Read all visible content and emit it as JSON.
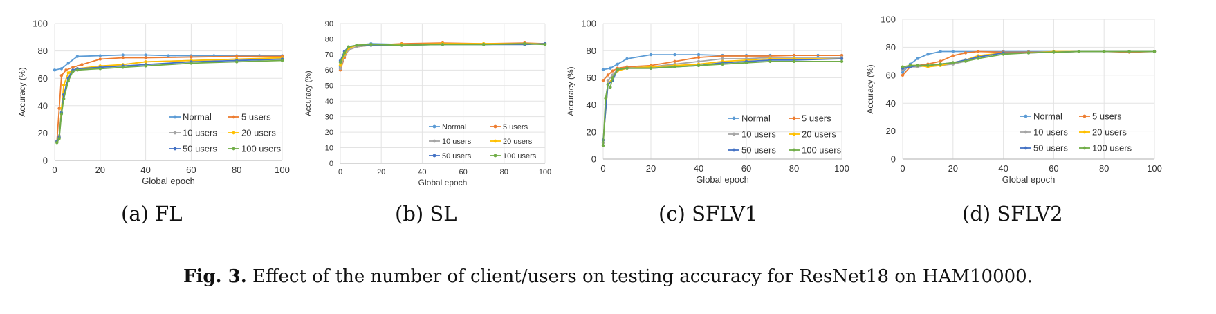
{
  "chart_data": [
    {
      "type": "line",
      "subcaption": "(a) FL",
      "xlabel": "Global epoch",
      "ylabel": "Accuracy (%)",
      "xlim": [
        0,
        100
      ],
      "ylim": [
        0,
        100
      ],
      "xticks": [
        "0",
        "20",
        "40",
        "60",
        "80",
        "100"
      ],
      "yticks": [
        "0",
        "20",
        "40",
        "60",
        "80",
        "100"
      ],
      "legend": [
        "Normal",
        "5 users",
        "10 users",
        "20 users",
        "50 users",
        "100 users"
      ],
      "series": [
        {
          "name": "Normal",
          "color": "#5b9bd5",
          "x": [
            0,
            3,
            6,
            10,
            20,
            30,
            40,
            50,
            60,
            70,
            80,
            90,
            100
          ],
          "values": [
            66,
            67,
            71,
            76,
            76.5,
            77,
            77,
            76.5,
            76.5,
            76.5,
            76.5,
            76.5,
            76.5
          ]
        },
        {
          "name": "5 users",
          "color": "#ed7d31",
          "x": [
            1,
            2,
            3,
            5,
            8,
            12,
            20,
            30,
            40,
            60,
            80,
            100
          ],
          "values": [
            14,
            38,
            62,
            66,
            68,
            70,
            74,
            75,
            75,
            75.5,
            76,
            76
          ]
        },
        {
          "name": "10 users",
          "color": "#a5a5a5",
          "x": [
            1,
            2,
            3,
            5,
            7,
            10,
            20,
            30,
            40,
            60,
            80,
            100
          ],
          "values": [
            14,
            18,
            38,
            55,
            64,
            66,
            68,
            70,
            72,
            73,
            74,
            74
          ]
        },
        {
          "name": "20 users",
          "color": "#ffc000",
          "x": [
            1,
            2,
            3,
            4,
            6,
            8,
            10,
            20,
            30,
            40,
            60,
            80,
            100
          ],
          "values": [
            14,
            17,
            38,
            55,
            64,
            66,
            67,
            69,
            70,
            72,
            73,
            74,
            75
          ]
        },
        {
          "name": "50 users",
          "color": "#4472c4",
          "x": [
            1,
            2,
            3,
            4,
            6,
            8,
            10,
            20,
            30,
            40,
            60,
            80,
            100
          ],
          "values": [
            14,
            17,
            35,
            48,
            60,
            66,
            67,
            68,
            69,
            70,
            72,
            73,
            74
          ]
        },
        {
          "name": "100 users",
          "color": "#70ad47",
          "x": [
            1,
            2,
            3,
            4,
            6,
            8,
            10,
            20,
            30,
            40,
            60,
            80,
            100
          ],
          "values": [
            13,
            16,
            34,
            45,
            58,
            65,
            66,
            67,
            68,
            69,
            71,
            72,
            73
          ]
        }
      ]
    },
    {
      "type": "line",
      "subcaption": "(b) SL",
      "xlabel": "Global epoch",
      "ylabel": "Accuracy (%)",
      "xlim": [
        0,
        100
      ],
      "ylim": [
        0,
        90
      ],
      "xticks": [
        "0",
        "20",
        "40",
        "60",
        "80",
        "100"
      ],
      "yticks": [
        "0",
        "10",
        "20",
        "30",
        "40",
        "50",
        "60",
        "70",
        "80",
        "90"
      ],
      "legend": [
        "Normal",
        "5 users",
        "10 users",
        "20 users",
        "50 users",
        "100 users"
      ],
      "series": [
        {
          "name": "Normal",
          "color": "#5b9bd5",
          "x": [
            0,
            2,
            4,
            8,
            15,
            30,
            50,
            70,
            90,
            100
          ],
          "values": [
            62,
            70,
            74,
            76,
            77,
            76.5,
            77,
            76.5,
            77,
            77
          ]
        },
        {
          "name": "5 users",
          "color": "#ed7d31",
          "x": [
            0,
            2,
            4,
            8,
            15,
            30,
            50,
            70,
            90,
            100
          ],
          "values": [
            60,
            68,
            73,
            75,
            76,
            77,
            77.5,
            77,
            77.5,
            77
          ]
        },
        {
          "name": "10 users",
          "color": "#a5a5a5",
          "x": [
            0,
            2,
            4,
            8,
            15,
            30,
            50,
            70,
            90,
            100
          ],
          "values": [
            61,
            69,
            73,
            75,
            76,
            76,
            76.5,
            76.5,
            77,
            77
          ]
        },
        {
          "name": "20 users",
          "color": "#ffc000",
          "x": [
            0,
            2,
            4,
            8,
            15,
            30,
            50,
            70,
            90,
            100
          ],
          "values": [
            63,
            70,
            74,
            76,
            76.5,
            76.5,
            77,
            77,
            77,
            77
          ]
        },
        {
          "name": "50 users",
          "color": "#4472c4",
          "x": [
            0,
            2,
            4,
            8,
            15,
            30,
            50,
            70,
            90,
            100
          ],
          "values": [
            66,
            72,
            75,
            76,
            76,
            76,
            76.5,
            76.5,
            76.5,
            77
          ]
        },
        {
          "name": "100 users",
          "color": "#70ad47",
          "x": [
            0,
            2,
            4,
            8,
            15,
            30,
            50,
            70,
            90,
            100
          ],
          "values": [
            65,
            71,
            75,
            76,
            76.5,
            76,
            76.5,
            76.5,
            77,
            76.5
          ]
        }
      ]
    },
    {
      "type": "line",
      "subcaption": "(c) SFLV1",
      "xlabel": "Global epoch",
      "ylabel": "Accuracy (%)",
      "xlim": [
        0,
        100
      ],
      "ylim": [
        0,
        100
      ],
      "xticks": [
        "0",
        "20",
        "40",
        "60",
        "80",
        "100"
      ],
      "yticks": [
        "0",
        "20",
        "40",
        "60",
        "80",
        "100"
      ],
      "legend": [
        "Normal",
        "5 users",
        "10 users",
        "20 users",
        "50 users",
        "100 users"
      ],
      "series": [
        {
          "name": "Normal",
          "color": "#5b9bd5",
          "x": [
            0,
            3,
            6,
            10,
            20,
            30,
            40,
            50,
            60,
            70,
            80,
            90,
            100
          ],
          "values": [
            66,
            67,
            70,
            74,
            77,
            77,
            77,
            76.5,
            76.5,
            76.5,
            76.5,
            76.5,
            76.5
          ]
        },
        {
          "name": "5 users",
          "color": "#ed7d31",
          "x": [
            0,
            2,
            4,
            6,
            10,
            20,
            30,
            40,
            50,
            60,
            70,
            80,
            100
          ],
          "values": [
            58,
            62,
            65,
            67,
            68,
            69,
            72,
            75,
            76,
            76,
            76,
            76.5,
            76.5
          ]
        },
        {
          "name": "10 users",
          "color": "#a5a5a5",
          "x": [
            0,
            2,
            4,
            6,
            10,
            20,
            30,
            40,
            50,
            60,
            70,
            80,
            100
          ],
          "values": [
            12,
            58,
            62,
            66,
            67,
            68,
            70,
            72,
            74,
            74,
            75,
            75,
            75
          ]
        },
        {
          "name": "20 users",
          "color": "#ffc000",
          "x": [
            0,
            2,
            4,
            6,
            10,
            20,
            30,
            40,
            50,
            60,
            70,
            80,
            100
          ],
          "values": [
            14,
            55,
            60,
            65,
            67,
            68,
            69,
            70,
            72,
            73,
            74,
            74,
            74
          ]
        },
        {
          "name": "50 users",
          "color": "#4472c4",
          "x": [
            0,
            2,
            4,
            6,
            10,
            20,
            30,
            40,
            50,
            60,
            70,
            80,
            100
          ],
          "values": [
            14,
            55,
            58,
            66,
            67,
            67,
            68,
            69,
            71,
            72,
            73,
            73,
            74
          ]
        },
        {
          "name": "100 users",
          "color": "#70ad47",
          "x": [
            0,
            1,
            2,
            3,
            4,
            6,
            10,
            20,
            30,
            40,
            50,
            60,
            70,
            80,
            100
          ],
          "values": [
            10,
            45,
            55,
            53,
            60,
            66,
            67,
            67,
            68,
            69,
            70,
            71,
            72,
            72,
            72
          ]
        }
      ]
    },
    {
      "type": "line",
      "subcaption": "(d) SFLV2",
      "xlabel": "Global epoch",
      "ylabel": "Accuracy (%)",
      "xlim": [
        0,
        100
      ],
      "ylim": [
        0,
        100
      ],
      "xticks": [
        "0",
        "20",
        "40",
        "60",
        "80",
        "100"
      ],
      "yticks": [
        "0",
        "20",
        "40",
        "60",
        "80",
        "100"
      ],
      "legend": [
        "Normal",
        "5 users",
        "10 users",
        "20 users",
        "50 users",
        "100 users"
      ],
      "series": [
        {
          "name": "Normal",
          "color": "#5b9bd5",
          "x": [
            0,
            3,
            6,
            10,
            15,
            20,
            30,
            40,
            50,
            60,
            70,
            80,
            90,
            100
          ],
          "values": [
            62,
            68,
            72,
            75,
            77,
            77,
            77,
            77,
            77,
            77,
            77,
            77,
            77,
            77
          ]
        },
        {
          "name": "5 users",
          "color": "#ed7d31",
          "x": [
            0,
            3,
            6,
            10,
            15,
            20,
            25,
            30,
            40,
            50,
            60,
            70,
            80,
            90,
            100
          ],
          "values": [
            60,
            66,
            67,
            68,
            70,
            74,
            76,
            77,
            76.5,
            76.5,
            76.5,
            77,
            77,
            76.5,
            77
          ]
        },
        {
          "name": "10 users",
          "color": "#a5a5a5",
          "x": [
            0,
            3,
            6,
            10,
            15,
            20,
            25,
            30,
            40,
            50,
            60,
            70,
            80,
            90,
            100
          ],
          "values": [
            64,
            66,
            66,
            67,
            67,
            68,
            70,
            73,
            76,
            76,
            76.5,
            77,
            77,
            77,
            77
          ]
        },
        {
          "name": "20 users",
          "color": "#ffc000",
          "x": [
            0,
            3,
            6,
            10,
            15,
            20,
            25,
            30,
            40,
            50,
            60,
            70,
            80,
            90,
            100
          ],
          "values": [
            66,
            67,
            67,
            66,
            67,
            69,
            71,
            74,
            76,
            76,
            77,
            77,
            77,
            77,
            77
          ]
        },
        {
          "name": "50 users",
          "color": "#4472c4",
          "x": [
            0,
            3,
            6,
            10,
            15,
            20,
            25,
            30,
            40,
            50,
            60,
            70,
            80,
            90,
            100
          ],
          "values": [
            65,
            66,
            67,
            67,
            68,
            69,
            71,
            73,
            76,
            76,
            76.5,
            77,
            77,
            77,
            77
          ]
        },
        {
          "name": "100 users",
          "color": "#70ad47",
          "x": [
            0,
            3,
            6,
            10,
            15,
            20,
            25,
            30,
            40,
            50,
            60,
            70,
            80,
            90,
            100
          ],
          "values": [
            66,
            67,
            67,
            67,
            68,
            69,
            70,
            72,
            75,
            76,
            76.5,
            77,
            77,
            77,
            77
          ]
        }
      ]
    }
  ],
  "caption": {
    "label": "Fig. 3.",
    "text": " Effect of the number of client/users on testing accuracy for ResNet18 on HAM10000."
  }
}
